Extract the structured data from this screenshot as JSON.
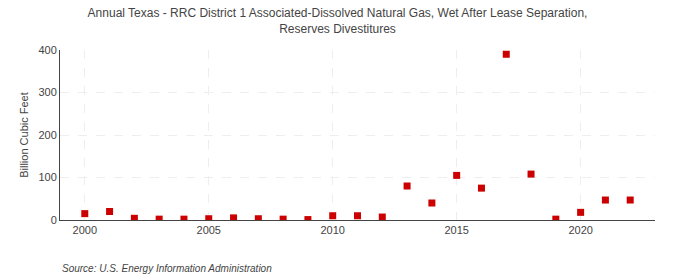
{
  "chart_data": {
    "type": "scatter",
    "title": "Annual Texas - RRC District 1 Associated-Dissolved Natural Gas, Wet After Lease Separation,\nReserves Divestitures",
    "ylabel": "Billion Cubic Feet",
    "source": "Source: U.S. Energy Information Administration",
    "x": [
      2000,
      2001,
      2002,
      2003,
      2004,
      2005,
      2006,
      2007,
      2008,
      2009,
      2010,
      2011,
      2012,
      2013,
      2014,
      2015,
      2016,
      2017,
      2018,
      2019,
      2020,
      2021,
      2022
    ],
    "values": [
      15,
      20,
      4,
      2,
      2,
      3,
      5,
      3,
      2,
      1,
      10,
      10,
      7,
      80,
      40,
      105,
      75,
      390,
      108,
      2,
      18,
      47,
      47
    ],
    "color": "#cc0000",
    "marker": "square",
    "xlim": [
      1999,
      2023
    ],
    "xticks": [
      2000,
      2005,
      2010,
      2015,
      2020
    ],
    "ylim": [
      0,
      400
    ],
    "yticks": [
      0,
      100,
      200,
      300,
      400
    ],
    "grid": true
  }
}
